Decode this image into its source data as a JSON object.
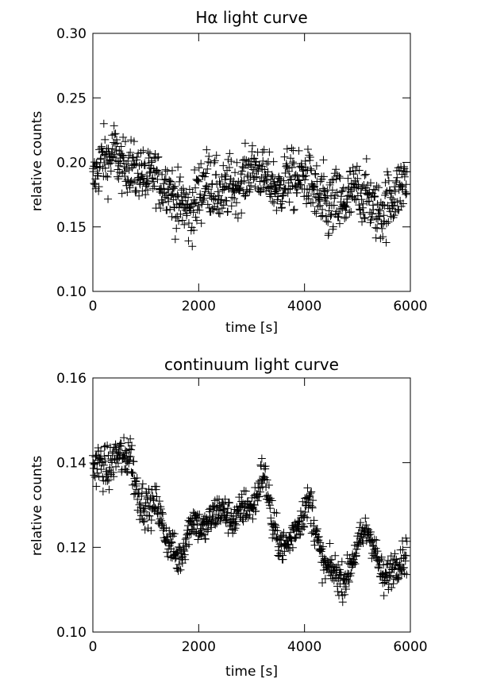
{
  "chart_data": [
    {
      "type": "scatter",
      "title": "Hα light curve",
      "xlabel": "time [s]",
      "ylabel": "relative counts",
      "xlim": [
        0,
        6000
      ],
      "ylim": [
        0.1,
        0.3
      ],
      "xticks": [
        0,
        2000,
        4000,
        6000
      ],
      "xtick_labels": [
        "0",
        "2000",
        "4000",
        "6000"
      ],
      "yticks": [
        0.1,
        0.15,
        0.2,
        0.25,
        0.3
      ],
      "ytick_labels": [
        "0.10",
        "0.15",
        "0.20",
        "0.25",
        "0.30"
      ],
      "marker": "plus",
      "marker_color": "#000000",
      "grid": false,
      "series": [
        {
          "x": [
            0,
            100,
            200,
            300,
            400,
            500,
            600,
            700,
            800,
            900,
            1000,
            1100,
            1200,
            1300,
            1400,
            1500,
            1600,
            1700,
            1800,
            1900,
            2000,
            2100,
            2200,
            2300,
            2400,
            2500,
            2600,
            2700,
            2800,
            2900,
            3000,
            3100,
            3200,
            3300,
            3400,
            3500,
            3600,
            3700,
            3800,
            3900,
            4000,
            4100,
            4200,
            4300,
            4400,
            4500,
            4600,
            4700,
            4800,
            4900,
            5000,
            5100,
            5200,
            5300,
            5400,
            5500,
            5600,
            5700,
            5800,
            5900
          ],
          "y": [
            0.185,
            0.195,
            0.205,
            0.2,
            0.21,
            0.2,
            0.195,
            0.2,
            0.19,
            0.195,
            0.185,
            0.19,
            0.19,
            0.18,
            0.185,
            0.175,
            0.165,
            0.17,
            0.16,
            0.165,
            0.175,
            0.185,
            0.185,
            0.18,
            0.175,
            0.175,
            0.185,
            0.18,
            0.185,
            0.19,
            0.195,
            0.195,
            0.19,
            0.185,
            0.185,
            0.175,
            0.185,
            0.19,
            0.185,
            0.185,
            0.19,
            0.185,
            0.175,
            0.17,
            0.165,
            0.165,
            0.17,
            0.165,
            0.17,
            0.175,
            0.18,
            0.175,
            0.175,
            0.165,
            0.16,
            0.165,
            0.17,
            0.175,
            0.18,
            0.185
          ],
          "spread": [
            0.02,
            0.022,
            0.022,
            0.022,
            0.022,
            0.02,
            0.02,
            0.022,
            0.02,
            0.02,
            0.02,
            0.02,
            0.02,
            0.02,
            0.02,
            0.022,
            0.025,
            0.025,
            0.025,
            0.025,
            0.025,
            0.025,
            0.025,
            0.022,
            0.022,
            0.022,
            0.022,
            0.02,
            0.02,
            0.02,
            0.02,
            0.02,
            0.02,
            0.02,
            0.02,
            0.022,
            0.022,
            0.022,
            0.022,
            0.022,
            0.022,
            0.022,
            0.025,
            0.028,
            0.028,
            0.025,
            0.028,
            0.025,
            0.025,
            0.022,
            0.022,
            0.022,
            0.022,
            0.022,
            0.025,
            0.025,
            0.022,
            0.022,
            0.022,
            0.022
          ]
        }
      ]
    },
    {
      "type": "scatter",
      "title": "continuum light curve",
      "xlabel": "time [s]",
      "ylabel": "relative counts",
      "xlim": [
        0,
        6000
      ],
      "ylim": [
        0.1,
        0.16
      ],
      "xticks": [
        0,
        2000,
        4000,
        6000
      ],
      "xtick_labels": [
        "0",
        "2000",
        "4000",
        "6000"
      ],
      "yticks": [
        0.1,
        0.12,
        0.14,
        0.16
      ],
      "ytick_labels": [
        "0.10",
        "0.12",
        "0.14",
        "0.16"
      ],
      "marker": "plus",
      "marker_color": "#000000",
      "grid": false,
      "series": [
        {
          "x": [
            0,
            100,
            200,
            300,
            400,
            500,
            600,
            700,
            800,
            900,
            1000,
            1100,
            1200,
            1300,
            1400,
            1500,
            1600,
            1700,
            1800,
            1900,
            2000,
            2100,
            2200,
            2300,
            2400,
            2500,
            2600,
            2700,
            2800,
            2900,
            3000,
            3100,
            3200,
            3300,
            3400,
            3500,
            3600,
            3700,
            3800,
            3900,
            4000,
            4100,
            4200,
            4300,
            4400,
            4500,
            4600,
            4700,
            4800,
            4900,
            5000,
            5100,
            5200,
            5300,
            5400,
            5500,
            5600,
            5700,
            5800,
            5900
          ],
          "y": [
            0.139,
            0.14,
            0.139,
            0.138,
            0.141,
            0.142,
            0.14,
            0.143,
            0.135,
            0.131,
            0.13,
            0.129,
            0.131,
            0.126,
            0.122,
            0.12,
            0.117,
            0.119,
            0.124,
            0.127,
            0.125,
            0.124,
            0.126,
            0.128,
            0.129,
            0.128,
            0.127,
            0.126,
            0.129,
            0.13,
            0.129,
            0.132,
            0.138,
            0.134,
            0.125,
            0.122,
            0.12,
            0.121,
            0.124,
            0.126,
            0.129,
            0.131,
            0.125,
            0.118,
            0.115,
            0.115,
            0.114,
            0.112,
            0.113,
            0.117,
            0.12,
            0.123,
            0.124,
            0.121,
            0.116,
            0.112,
            0.114,
            0.116,
            0.117,
            0.118
          ],
          "spread": [
            0.005,
            0.005,
            0.005,
            0.005,
            0.005,
            0.005,
            0.005,
            0.005,
            0.005,
            0.005,
            0.004,
            0.004,
            0.004,
            0.004,
            0.004,
            0.004,
            0.004,
            0.004,
            0.004,
            0.004,
            0.004,
            0.004,
            0.004,
            0.004,
            0.004,
            0.004,
            0.004,
            0.004,
            0.004,
            0.004,
            0.004,
            0.004,
            0.005,
            0.005,
            0.004,
            0.004,
            0.004,
            0.004,
            0.004,
            0.004,
            0.004,
            0.005,
            0.004,
            0.004,
            0.004,
            0.004,
            0.004,
            0.004,
            0.004,
            0.004,
            0.004,
            0.004,
            0.004,
            0.004,
            0.004,
            0.004,
            0.004,
            0.004,
            0.004,
            0.004
          ]
        }
      ]
    }
  ]
}
